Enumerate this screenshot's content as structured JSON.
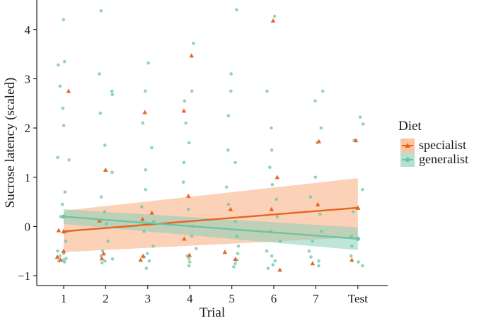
{
  "chart_data": {
    "type": "scatter",
    "xlabel": "Trial",
    "ylabel": "Sucrose latency (scaled)",
    "categories": [
      "1",
      "2",
      "3",
      "4",
      "5",
      "6",
      "7",
      "Test"
    ],
    "ylim": [
      -1.2,
      4.6
    ],
    "yticks": [
      -1,
      0,
      1,
      2,
      3,
      4
    ],
    "grid": false,
    "legend": {
      "title": "Diet",
      "position": "right",
      "entries": [
        {
          "label": "specialist",
          "color": "#e8641e",
          "marker": "triangle"
        },
        {
          "label": "generalist",
          "color": "#6cc4a4",
          "marker": "circle"
        }
      ]
    },
    "series": [
      {
        "name": "specialist",
        "marker": "triangle",
        "color": "#e8641e",
        "points": [
          [
            1,
            2.75
          ],
          [
            1,
            -0.08
          ],
          [
            1,
            -0.5
          ],
          [
            1,
            -0.62
          ],
          [
            1,
            -0.68
          ],
          [
            2,
            1.15
          ],
          [
            2,
            0.12
          ],
          [
            2,
            -0.55
          ],
          [
            2,
            -0.65
          ],
          [
            3,
            2.32
          ],
          [
            3,
            0.28
          ],
          [
            3,
            0.15
          ],
          [
            3,
            -0.6
          ],
          [
            3,
            -0.68
          ],
          [
            4,
            3.47
          ],
          [
            4,
            2.35
          ],
          [
            4,
            0.62
          ],
          [
            4,
            -0.25
          ],
          [
            4,
            -0.58
          ],
          [
            5,
            0.35
          ],
          [
            5,
            -0.52
          ],
          [
            5,
            -0.66
          ],
          [
            6,
            4.18
          ],
          [
            6,
            1.0
          ],
          [
            6,
            0.35
          ],
          [
            6,
            -0.88
          ],
          [
            7,
            1.73
          ],
          [
            7,
            0.45
          ],
          [
            7,
            -0.75
          ],
          [
            8,
            1.75
          ],
          [
            8,
            -0.68
          ]
        ],
        "fit_line": {
          "x": [
            1,
            8
          ],
          "y": [
            -0.1,
            0.38
          ]
        },
        "ci_band": {
          "x": [
            1,
            8
          ],
          "upper": [
            0.32,
            0.98
          ],
          "lower": [
            -0.52,
            -0.22
          ]
        }
      },
      {
        "name": "generalist",
        "marker": "circle",
        "color": "#6cc4a4",
        "points": [
          [
            1,
            4.2
          ],
          [
            1,
            3.35
          ],
          [
            1,
            3.28
          ],
          [
            1,
            2.85
          ],
          [
            1,
            2.4
          ],
          [
            1,
            2.05
          ],
          [
            1,
            1.4
          ],
          [
            1,
            1.35
          ],
          [
            1,
            0.7
          ],
          [
            1,
            0.45
          ],
          [
            1,
            0.2
          ],
          [
            1,
            -0.1
          ],
          [
            1,
            -0.3
          ],
          [
            1,
            -0.5
          ],
          [
            1,
            -0.55
          ],
          [
            1,
            -0.6
          ],
          [
            1,
            -0.65
          ],
          [
            1,
            -0.7
          ],
          [
            1,
            -0.72
          ],
          [
            1,
            -0.68
          ],
          [
            2,
            4.38
          ],
          [
            2,
            3.1
          ],
          [
            2,
            2.75
          ],
          [
            2,
            2.68
          ],
          [
            2,
            2.3
          ],
          [
            2,
            1.65
          ],
          [
            2,
            1.1
          ],
          [
            2,
            0.6
          ],
          [
            2,
            0.3
          ],
          [
            2,
            0.05
          ],
          [
            2,
            -0.3
          ],
          [
            2,
            -0.5
          ],
          [
            2,
            -0.6
          ],
          [
            2,
            -0.66
          ],
          [
            2,
            -0.7
          ],
          [
            2,
            -0.74
          ],
          [
            3,
            3.32
          ],
          [
            3,
            2.75
          ],
          [
            3,
            2.1
          ],
          [
            3,
            1.6
          ],
          [
            3,
            1.15
          ],
          [
            3,
            0.75
          ],
          [
            3,
            0.4
          ],
          [
            3,
            0.1
          ],
          [
            3,
            -0.1
          ],
          [
            3,
            -0.4
          ],
          [
            3,
            -0.55
          ],
          [
            3,
            -0.62
          ],
          [
            3,
            -0.7
          ],
          [
            3,
            -0.85
          ],
          [
            4,
            3.72
          ],
          [
            4,
            2.75
          ],
          [
            4,
            2.55
          ],
          [
            4,
            2.1
          ],
          [
            4,
            1.7
          ],
          [
            4,
            1.3
          ],
          [
            4,
            0.9
          ],
          [
            4,
            0.35
          ],
          [
            4,
            0.0
          ],
          [
            4,
            -0.2
          ],
          [
            4,
            -0.45
          ],
          [
            4,
            -0.6
          ],
          [
            4,
            -0.65
          ],
          [
            4,
            -0.72
          ],
          [
            4,
            -0.8
          ],
          [
            5,
            4.4
          ],
          [
            5,
            3.1
          ],
          [
            5,
            2.75
          ],
          [
            5,
            2.25
          ],
          [
            5,
            1.55
          ],
          [
            5,
            1.3
          ],
          [
            5,
            0.8
          ],
          [
            5,
            0.45
          ],
          [
            5,
            0.1
          ],
          [
            5,
            -0.2
          ],
          [
            5,
            -0.4
          ],
          [
            5,
            -0.55
          ],
          [
            5,
            -0.68
          ],
          [
            5,
            -0.75
          ],
          [
            5,
            -0.82
          ],
          [
            6,
            4.27
          ],
          [
            6,
            2.75
          ],
          [
            6,
            2.0
          ],
          [
            6,
            1.55
          ],
          [
            6,
            1.2
          ],
          [
            6,
            0.85
          ],
          [
            6,
            0.55
          ],
          [
            6,
            0.2
          ],
          [
            6,
            -0.1
          ],
          [
            6,
            -0.3
          ],
          [
            6,
            -0.5
          ],
          [
            6,
            -0.6
          ],
          [
            6,
            -0.7
          ],
          [
            6,
            -0.78
          ],
          [
            6,
            -0.85
          ],
          [
            7,
            2.75
          ],
          [
            7,
            2.55
          ],
          [
            7,
            2.0
          ],
          [
            7,
            1.7
          ],
          [
            7,
            1.0
          ],
          [
            7,
            0.6
          ],
          [
            7,
            0.25
          ],
          [
            7,
            -0.1
          ],
          [
            7,
            -0.3
          ],
          [
            7,
            -0.5
          ],
          [
            7,
            -0.62
          ],
          [
            7,
            -0.7
          ],
          [
            7,
            -0.8
          ],
          [
            8,
            2.22
          ],
          [
            8,
            2.08
          ],
          [
            8,
            1.75
          ],
          [
            8,
            0.75
          ],
          [
            8,
            0.3
          ],
          [
            8,
            -0.2
          ],
          [
            8,
            -0.4
          ],
          [
            8,
            -0.6
          ],
          [
            8,
            -0.72
          ],
          [
            8,
            -0.8
          ]
        ],
        "fit_line": {
          "x": [
            1,
            8
          ],
          "y": [
            0.2,
            -0.25
          ]
        },
        "ci_band": {
          "x": [
            1,
            8
          ],
          "upper": [
            0.35,
            -0.02
          ],
          "lower": [
            0.05,
            -0.48
          ]
        }
      }
    ]
  }
}
